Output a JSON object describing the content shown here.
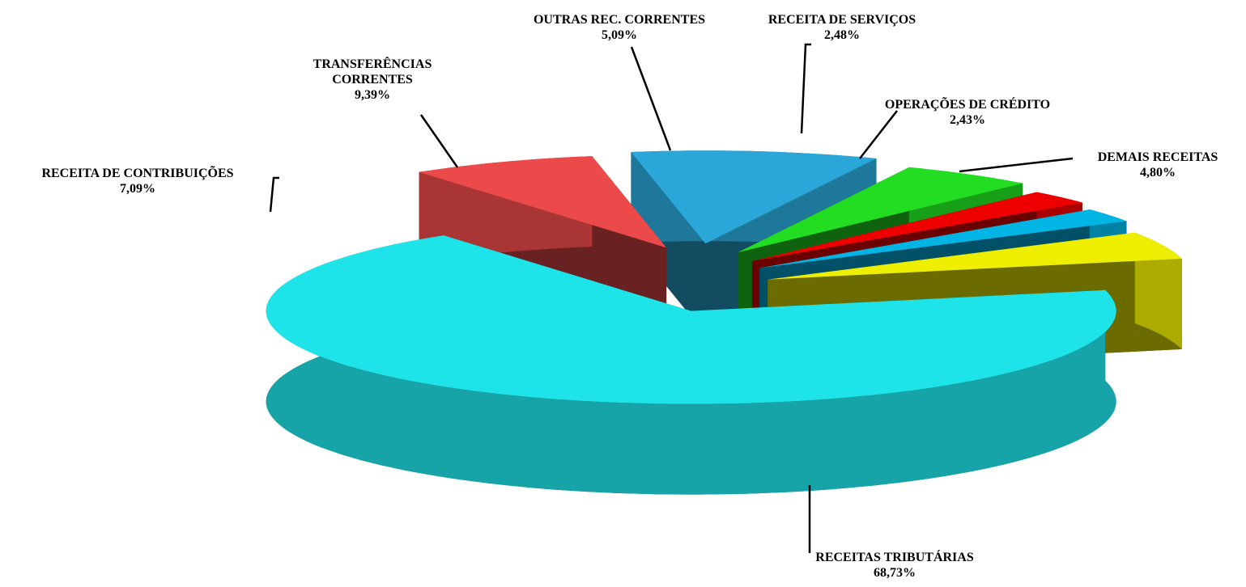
{
  "chart_data": {
    "type": "pie3d",
    "categories": [
      "RECEITAS TRIBUTÁRIAS",
      "RECEITA DE CONTRIBUIÇÕES",
      "TRANSFERÊNCIAS CORRENTES",
      "OUTRAS REC. CORRENTES",
      "RECEITA DE SERVIÇOS",
      "OPERAÇÕES DE CRÉDITO",
      "DEMAIS RECEITAS"
    ],
    "values": [
      68.73,
      7.09,
      9.39,
      5.09,
      2.48,
      2.43,
      4.8
    ],
    "value_labels": [
      "68,73%",
      "7,09%",
      "9,39%",
      "5,09%",
      "2,48%",
      "2,43%",
      "4,80%"
    ],
    "colors": [
      "#1ee4ea",
      "#ec4a4a",
      "#2aa6d8",
      "#22dd22",
      "#ee0000",
      "#00b4e4",
      "#eeee00"
    ]
  }
}
